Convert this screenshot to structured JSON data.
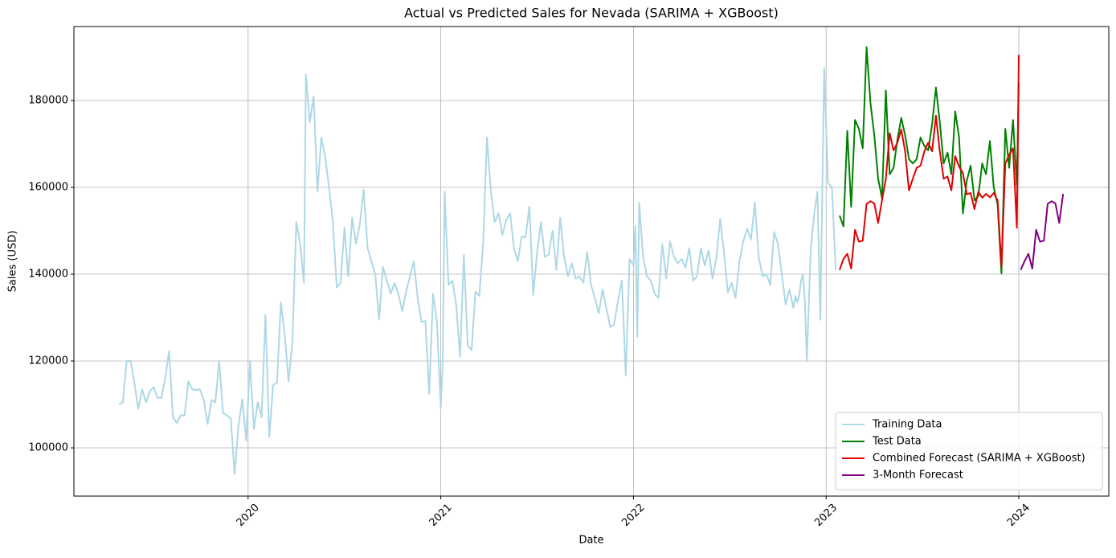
{
  "chart_data": {
    "type": "line",
    "title": "Actual vs Predicted Sales for Nevada (SARIMA + XGBoost)",
    "x_label": "Date",
    "y_label": "Sales (USD)",
    "xlim": [
      2019.096,
      2024.467
    ],
    "xticks": [
      2020,
      2021,
      2022,
      2023,
      2024
    ],
    "ylim": [
      88889,
      197037
    ],
    "yticks": [
      100000,
      120000,
      140000,
      160000,
      180000
    ],
    "grid": true,
    "legend": "lower right",
    "series": [
      {
        "name": "Training Data",
        "color": "#add8e6",
        "x": [
          2019.33,
          2019.35,
          2019.37,
          2019.39,
          2019.41,
          2019.43,
          2019.45,
          2019.47,
          2019.49,
          2019.51,
          2019.53,
          2019.55,
          2019.57,
          2019.59,
          2019.61,
          2019.63,
          2019.65,
          2019.67,
          2019.69,
          2019.71,
          2019.73,
          2019.75,
          2019.77,
          2019.79,
          2019.81,
          2019.83,
          2019.85,
          2019.87,
          2019.89,
          2019.91,
          2019.93,
          2019.95,
          2019.97,
          2019.99,
          2020.01,
          2020.03,
          2020.05,
          2020.07,
          2020.09,
          2020.11,
          2020.13,
          2020.15,
          2020.17,
          2020.19,
          2020.21,
          2020.23,
          2020.25,
          2020.27,
          2020.29,
          2020.3,
          2020.32,
          2020.34,
          2020.36,
          2020.38,
          2020.4,
          2020.42,
          2020.44,
          2020.46,
          2020.48,
          2020.5,
          2020.52,
          2020.54,
          2020.56,
          2020.58,
          2020.6,
          2020.62,
          2020.64,
          2020.66,
          2020.68,
          2020.7,
          2020.72,
          2020.74,
          2020.76,
          2020.78,
          2020.8,
          2020.82,
          2020.84,
          2020.86,
          2020.88,
          2020.9,
          2020.92,
          2020.94,
          2020.96,
          2020.98,
          2021.0,
          2021.01,
          2021.02,
          2021.04,
          2021.06,
          2021.08,
          2021.1,
          2021.12,
          2021.14,
          2021.16,
          2021.18,
          2021.2,
          2021.22,
          2021.24,
          2021.26,
          2021.28,
          2021.3,
          2021.32,
          2021.34,
          2021.36,
          2021.38,
          2021.4,
          2021.42,
          2021.44,
          2021.46,
          2021.48,
          2021.5,
          2021.52,
          2021.54,
          2021.56,
          2021.58,
          2021.6,
          2021.62,
          2021.64,
          2021.66,
          2021.68,
          2021.7,
          2021.72,
          2021.74,
          2021.76,
          2021.78,
          2021.8,
          2021.82,
          2021.84,
          2021.86,
          2021.88,
          2021.9,
          2021.92,
          2021.94,
          2021.96,
          2021.98,
          2022.0,
          2022.01,
          2022.02,
          2022.03,
          2022.05,
          2022.07,
          2022.09,
          2022.11,
          2022.13,
          2022.15,
          2022.17,
          2022.19,
          2022.21,
          2022.23,
          2022.25,
          2022.27,
          2022.29,
          2022.31,
          2022.33,
          2022.35,
          2022.37,
          2022.39,
          2022.41,
          2022.43,
          2022.45,
          2022.47,
          2022.49,
          2022.51,
          2022.53,
          2022.55,
          2022.57,
          2022.59,
          2022.61,
          2022.63,
          2022.65,
          2022.67,
          2022.69,
          2022.71,
          2022.73,
          2022.75,
          2022.77,
          2022.79,
          2022.81,
          2022.83,
          2022.84,
          2022.85,
          2022.86,
          2022.87,
          2022.88,
          2022.89,
          2022.9,
          2022.92,
          2022.94,
          2022.955,
          2022.97,
          2022.99,
          2023.01,
          2023.03,
          2023.05
        ],
        "values": [
          110000,
          110500,
          120000,
          120000,
          115000,
          109000,
          113500,
          110500,
          113000,
          114000,
          111500,
          111500,
          116000,
          122300,
          107000,
          105700,
          107500,
          107500,
          115300,
          113500,
          113300,
          113500,
          111000,
          105500,
          111000,
          110500,
          120000,
          108000,
          107500,
          106800,
          94000,
          105000,
          111200,
          101700,
          120000,
          104300,
          110500,
          107000,
          130600,
          102500,
          114500,
          115000,
          133500,
          126000,
          115300,
          124500,
          152000,
          147000,
          138000,
          186000,
          175000,
          181000,
          159000,
          171500,
          167000,
          160000,
          152000,
          137000,
          138000,
          150700,
          139500,
          153000,
          147000,
          151500,
          159500,
          146000,
          143000,
          140000,
          129500,
          141700,
          138500,
          135500,
          138000,
          135500,
          131500,
          136000,
          139500,
          143000,
          134500,
          129000,
          129200,
          112500,
          135500,
          129000,
          109200,
          120000,
          159000,
          137500,
          138500,
          133000,
          121000,
          144500,
          123500,
          122500,
          136000,
          135000,
          147000,
          171500,
          159000,
          152000,
          154000,
          149000,
          152500,
          154000,
          146000,
          143000,
          148700,
          148500,
          155600,
          135200,
          145000,
          152000,
          144000,
          144500,
          150000,
          141000,
          153000,
          144000,
          139500,
          142500,
          139000,
          139500,
          138000,
          145000,
          137500,
          134500,
          131000,
          136500,
          132000,
          127800,
          128500,
          134000,
          138500,
          116700,
          143500,
          142000,
          151000,
          125500,
          156500,
          144000,
          139500,
          138500,
          135500,
          134500,
          147000,
          139000,
          147500,
          144000,
          142500,
          143500,
          141500,
          146000,
          138500,
          139500,
          146000,
          142000,
          145500,
          139000,
          143500,
          152800,
          145000,
          135800,
          138000,
          134500,
          143000,
          147500,
          150500,
          148000,
          156500,
          144000,
          139500,
          140000,
          137500,
          149700,
          147000,
          140000,
          133000,
          136500,
          132200,
          135000,
          133500,
          135000,
          138500,
          140000,
          133500,
          120000,
          146000,
          154500,
          159000,
          129500,
          187500,
          161000,
          160000,
          141000
        ]
      },
      {
        "name": "Test Data",
        "color": "#008000",
        "x": [
          2023.07,
          2023.09,
          2023.11,
          2023.13,
          2023.15,
          2023.17,
          2023.19,
          2023.21,
          2023.23,
          2023.25,
          2023.27,
          2023.29,
          2023.31,
          2023.33,
          2023.35,
          2023.37,
          2023.39,
          2023.41,
          2023.43,
          2023.45,
          2023.47,
          2023.49,
          2023.51,
          2023.53,
          2023.55,
          2023.57,
          2023.59,
          2023.61,
          2023.63,
          2023.65,
          2023.67,
          2023.69,
          2023.71,
          2023.73,
          2023.75,
          2023.77,
          2023.79,
          2023.81,
          2023.83,
          2023.85,
          2023.87,
          2023.89,
          2023.91,
          2023.93,
          2023.95,
          2023.97,
          2023.99,
          2024.0
        ],
        "values": [
          153500,
          151000,
          173000,
          155500,
          175500,
          173500,
          169000,
          192300,
          179500,
          172000,
          162000,
          157500,
          182300,
          163000,
          164500,
          171000,
          176000,
          172000,
          166500,
          165500,
          166500,
          171500,
          169500,
          168500,
          174500,
          183000,
          175000,
          165500,
          168000,
          163000,
          177500,
          171500,
          154000,
          161500,
          165000,
          157000,
          158000,
          165500,
          163000,
          170700,
          160000,
          156000,
          140200,
          173500,
          164500,
          175500,
          160500,
          184000
        ]
      },
      {
        "name": "Combined Forecast (SARIMA + XGBoost)",
        "color": "#e00000",
        "x": [
          2023.07,
          2023.09,
          2023.11,
          2023.13,
          2023.15,
          2023.17,
          2023.19,
          2023.21,
          2023.23,
          2023.25,
          2023.27,
          2023.29,
          2023.31,
          2023.33,
          2023.35,
          2023.37,
          2023.39,
          2023.41,
          2023.43,
          2023.45,
          2023.47,
          2023.49,
          2023.51,
          2023.53,
          2023.55,
          2023.57,
          2023.59,
          2023.61,
          2023.63,
          2023.65,
          2023.67,
          2023.69,
          2023.71,
          2023.73,
          2023.75,
          2023.77,
          2023.79,
          2023.81,
          2023.83,
          2023.85,
          2023.87,
          2023.89,
          2023.91,
          2023.93,
          2023.95,
          2023.97,
          2023.99,
          2024.0
        ],
        "values": [
          141000,
          143500,
          144700,
          141300,
          150200,
          147500,
          147700,
          156200,
          156800,
          156300,
          151800,
          157000,
          162000,
          172500,
          168500,
          170300,
          173300,
          168300,
          159300,
          162000,
          164500,
          165000,
          168300,
          170300,
          168300,
          176500,
          168300,
          162000,
          162500,
          159300,
          167200,
          164800,
          163300,
          158400,
          158700,
          155000,
          159000,
          157600,
          158500,
          157700,
          158700,
          157000,
          141800,
          165500,
          167500,
          169000,
          150700,
          190500
        ]
      },
      {
        "name": "3-Month Forecast",
        "color": "#800080",
        "x": [
          2024.01,
          2024.03,
          2024.05,
          2024.07,
          2024.09,
          2024.11,
          2024.13,
          2024.15,
          2024.17,
          2024.19,
          2024.21,
          2024.23
        ],
        "values": [
          141000,
          143000,
          144700,
          141300,
          150200,
          147500,
          147700,
          156200,
          156800,
          156300,
          151800,
          158500
        ]
      }
    ]
  }
}
